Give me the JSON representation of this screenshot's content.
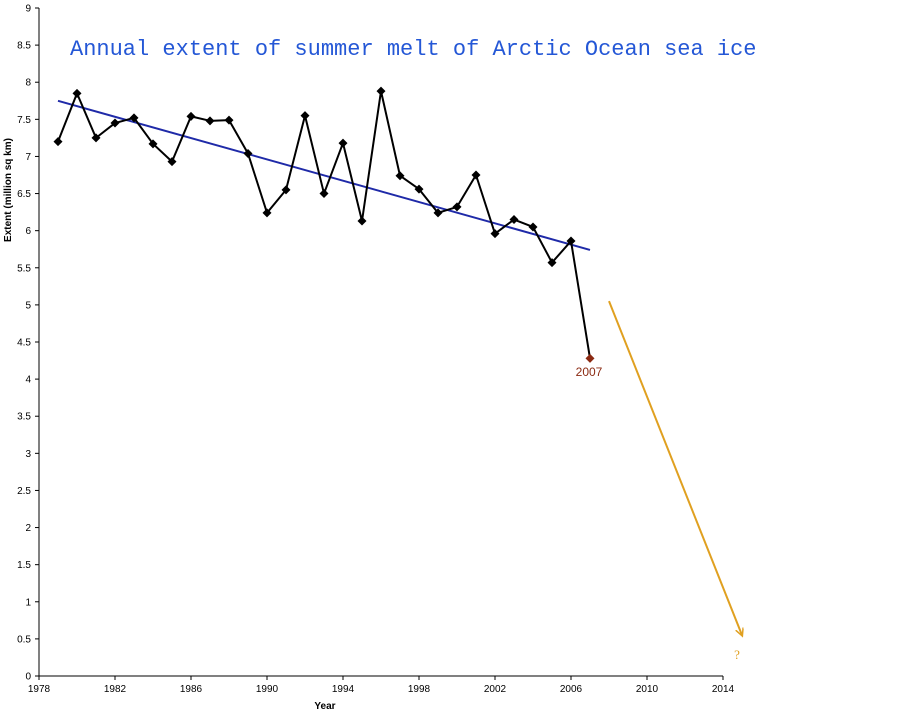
{
  "chart_data": {
    "type": "line",
    "title": "Annual extent of summer melt of Arctic Ocean sea ice",
    "xlabel": "Year",
    "ylabel": "Extent (million sq km)",
    "xlim": [
      1978,
      2014
    ],
    "ylim": [
      0,
      9
    ],
    "x_ticks": [
      1978,
      1982,
      1986,
      1990,
      1994,
      1998,
      2002,
      2006,
      2010,
      2014
    ],
    "y_ticks": [
      0,
      0.5,
      1,
      1.5,
      2,
      2.5,
      3,
      3.5,
      4,
      4.5,
      5,
      5.5,
      6,
      6.5,
      7,
      7.5,
      8,
      8.5,
      9
    ],
    "series": [
      {
        "name": "",
        "color": "#000000",
        "marker": "diamond",
        "x": [
          1979,
          1980,
          1981,
          1982,
          1983,
          1984,
          1985,
          1986,
          1987,
          1988,
          1989,
          1990,
          1991,
          1992,
          1993,
          1994,
          1995,
          1996,
          1997,
          1998,
          1999,
          2000,
          2001,
          2002,
          2003,
          2004,
          2005,
          2006,
          2007
        ],
        "y": [
          7.2,
          7.85,
          7.25,
          7.45,
          7.52,
          7.17,
          6.93,
          7.54,
          7.48,
          7.49,
          7.04,
          6.24,
          6.55,
          7.55,
          6.5,
          7.18,
          6.13,
          7.88,
          6.74,
          6.56,
          6.24,
          6.32,
          6.75,
          5.96,
          6.15,
          6.05,
          5.57,
          5.86,
          4.28
        ]
      }
    ],
    "trendline": {
      "color": "#1f2aa8",
      "x": [
        1979,
        2007
      ],
      "y": [
        7.75,
        5.74
      ]
    },
    "highlight_point": {
      "x": 2007,
      "y": 4.28,
      "color": "#8b2a12",
      "label": "2007"
    },
    "projection_arrow": {
      "color": "#e0a020",
      "x": [
        2008,
        2015
      ],
      "y": [
        5.05,
        0.55
      ],
      "label": "?"
    }
  }
}
